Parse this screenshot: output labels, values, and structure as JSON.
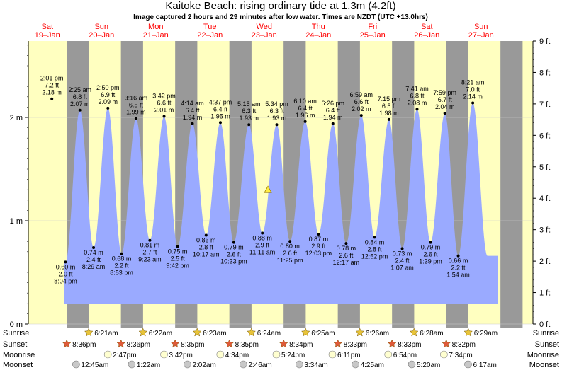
{
  "title": "Kaitoke Beach: rising  ordinary tide at 1.3m (4.2ft)",
  "subtitle": "Image captured 2 hours and 29 minutes after low water. Times are NZDT (UTC +13.0hrs)",
  "colors": {
    "day": "#ffffc0",
    "night": "#999999",
    "tide": "#9aaaff",
    "date": "#ff0000",
    "sun": "#e8c43a",
    "sunset": "#e05a3a"
  },
  "days": [
    {
      "dow": "Sat",
      "date": "19–Jan"
    },
    {
      "dow": "Sun",
      "date": "20–Jan"
    },
    {
      "dow": "Mon",
      "date": "21–Jan"
    },
    {
      "dow": "Tue",
      "date": "22–Jan"
    },
    {
      "dow": "Wed",
      "date": "23–Jan"
    },
    {
      "dow": "Thu",
      "date": "24–Jan"
    },
    {
      "dow": "Fri",
      "date": "25–Jan"
    },
    {
      "dow": "Sat",
      "date": "26–Jan"
    },
    {
      "dow": "Sun",
      "date": "27–Jan"
    }
  ],
  "chart_data": {
    "type": "area",
    "y_left_label_unit": "m",
    "y_left_range": [
      0,
      2.74
    ],
    "y_left_ticks": [
      "0 m",
      "1 m",
      "2 m"
    ],
    "y_right_range": [
      0,
      9
    ],
    "y_right_ticks": [
      "0 ft",
      "1 ft",
      "2 ft",
      "3 ft",
      "4 ft",
      "5 ft",
      "6 ft",
      "7 ft",
      "8 ft",
      "9 ft"
    ],
    "extremes": [
      {
        "kind": "high",
        "t": "Sat 19-Jan 14:01",
        "time": "2:01 pm",
        "ft": "7.2 ft",
        "m": "2.18 m",
        "value": 2.18
      },
      {
        "kind": "low",
        "t": "Sat 19-Jan 20:04",
        "time": "8:04 pm",
        "ft": "2.0 ft",
        "m": "0.60 m",
        "value": 0.6
      },
      {
        "kind": "high",
        "t": "Sun 20-Jan 02:25",
        "time": "2:25 am",
        "ft": "6.8 ft",
        "m": "2.07 m",
        "value": 2.07
      },
      {
        "kind": "low",
        "t": "Sun 20-Jan 08:29",
        "time": "8:29 am",
        "ft": "2.4 ft",
        "m": "0.74 m",
        "value": 0.74
      },
      {
        "kind": "high",
        "t": "Sun 20-Jan 14:50",
        "time": "2:50 pm",
        "ft": "6.9 ft",
        "m": "2.09 m",
        "value": 2.09
      },
      {
        "kind": "low",
        "t": "Sun 20-Jan 20:53",
        "time": "8:53 pm",
        "ft": "2.2 ft",
        "m": "0.68 m",
        "value": 0.68
      },
      {
        "kind": "high",
        "t": "Mon 21-Jan 03:16",
        "time": "3:16 am",
        "ft": "6.5 ft",
        "m": "1.99 m",
        "value": 1.99
      },
      {
        "kind": "low",
        "t": "Mon 21-Jan 09:23",
        "time": "9:23 am",
        "ft": "2.7 ft",
        "m": "0.81 m",
        "value": 0.81
      },
      {
        "kind": "high",
        "t": "Mon 21-Jan 15:42",
        "time": "3:42 pm",
        "ft": "6.6 ft",
        "m": "2.01 m",
        "value": 2.01
      },
      {
        "kind": "low",
        "t": "Mon 21-Jan 21:42",
        "time": "9:42 pm",
        "ft": "2.5 ft",
        "m": "0.75 m",
        "value": 0.75
      },
      {
        "kind": "high",
        "t": "Tue 22-Jan 04:14",
        "time": "4:14 am",
        "ft": "6.4 ft",
        "m": "1.94 m",
        "value": 1.94
      },
      {
        "kind": "low",
        "t": "Tue 22-Jan 10:17",
        "time": "10:17 am",
        "ft": "2.8 ft",
        "m": "0.86 m",
        "value": 0.86
      },
      {
        "kind": "high",
        "t": "Tue 22-Jan 16:37",
        "time": "4:37 pm",
        "ft": "6.4 ft",
        "m": "1.95 m",
        "value": 1.95
      },
      {
        "kind": "low",
        "t": "Tue 22-Jan 22:33",
        "time": "10:33 pm",
        "ft": "2.6 ft",
        "m": "0.79 m",
        "value": 0.79
      },
      {
        "kind": "high",
        "t": "Wed 23-Jan 05:15",
        "time": "5:15 am",
        "ft": "6.3 ft",
        "m": "1.93 m",
        "value": 1.93
      },
      {
        "kind": "low",
        "t": "Wed 23-Jan 11:11",
        "time": "11:11 am",
        "ft": "2.9 ft",
        "m": "0.88 m",
        "value": 0.88
      },
      {
        "kind": "high",
        "t": "Wed 23-Jan 17:34",
        "time": "5:34 pm",
        "ft": "6.3 ft",
        "m": "1.93 m",
        "value": 1.93
      },
      {
        "kind": "low",
        "t": "Wed 23-Jan 23:25",
        "time": "11:25 pm",
        "ft": "2.6 ft",
        "m": "0.80 m",
        "value": 0.8
      },
      {
        "kind": "high",
        "t": "Thu 24-Jan 06:10",
        "time": "6:10 am",
        "ft": "6.4 ft",
        "m": "1.96 m",
        "value": 1.96
      },
      {
        "kind": "low",
        "t": "Thu 24-Jan 12:03",
        "time": "12:03 pm",
        "ft": "2.9 ft",
        "m": "0.87 m",
        "value": 0.87
      },
      {
        "kind": "high",
        "t": "Thu 24-Jan 18:26",
        "time": "6:26 pm",
        "ft": "6.4 ft",
        "m": "1.94 m",
        "value": 1.94
      },
      {
        "kind": "low",
        "t": "Fri 25-Jan 00:17",
        "time": "12:17 am",
        "ft": "2.6 ft",
        "m": "0.78 m",
        "value": 0.78
      },
      {
        "kind": "high",
        "t": "Fri 25-Jan 06:59",
        "time": "6:59 am",
        "ft": "6.6 ft",
        "m": "2.02 m",
        "value": 2.02
      },
      {
        "kind": "low",
        "t": "Fri 25-Jan 12:52",
        "time": "12:52 pm",
        "ft": "2.8 ft",
        "m": "0.84 m",
        "value": 0.84
      },
      {
        "kind": "high",
        "t": "Fri 25-Jan 19:15",
        "time": "7:15 pm",
        "ft": "6.5 ft",
        "m": "1.98 m",
        "value": 1.98
      },
      {
        "kind": "low",
        "t": "Sat 26-Jan 01:07",
        "time": "1:07 am",
        "ft": "2.4 ft",
        "m": "0.73 m",
        "value": 0.73
      },
      {
        "kind": "high",
        "t": "Sat 26-Jan 07:41",
        "time": "7:41 am",
        "ft": "6.8 ft",
        "m": "2.08 m",
        "value": 2.08
      },
      {
        "kind": "low",
        "t": "Sat 26-Jan 13:39",
        "time": "1:39 pm",
        "ft": "2.6 ft",
        "m": "0.79 m",
        "value": 0.79
      },
      {
        "kind": "high",
        "t": "Sat 26-Jan 19:59",
        "time": "7:59 pm",
        "ft": "6.7 ft",
        "m": "2.04 m",
        "value": 2.04
      },
      {
        "kind": "low",
        "t": "Sun 27-Jan 01:54",
        "time": "1:54 am",
        "ft": "2.2 ft",
        "m": "0.66 m",
        "value": 0.66
      },
      {
        "kind": "high",
        "t": "Sun 27-Jan 08:21",
        "time": "8:21 am",
        "ft": "7.0 ft",
        "m": "2.14 m",
        "value": 2.14
      }
    ],
    "now_marker": {
      "t": "Wed 23-Jan 13:40",
      "value": 1.3
    }
  },
  "rows": {
    "sunrise": {
      "label": "Sunrise",
      "times": [
        "6:21am",
        "6:22am",
        "6:23am",
        "6:24am",
        "6:25am",
        "6:26am",
        "6:28am",
        "6:29am"
      ]
    },
    "sunset": {
      "label": "Sunset",
      "times": [
        "8:36pm",
        "8:36pm",
        "8:35pm",
        "8:35pm",
        "8:34pm",
        "8:33pm",
        "8:33pm",
        "8:32pm"
      ]
    },
    "moonrise": {
      "label": "Moonrise",
      "times": [
        "2:47pm",
        "3:42pm",
        "4:34pm",
        "5:24pm",
        "6:11pm",
        "6:54pm",
        "7:34pm"
      ]
    },
    "moonset": {
      "label": "Moonset",
      "times": [
        "12:45am",
        "1:22am",
        "2:02am",
        "2:46am",
        "3:34am",
        "4:25am",
        "5:20am",
        "6:17am"
      ]
    }
  }
}
